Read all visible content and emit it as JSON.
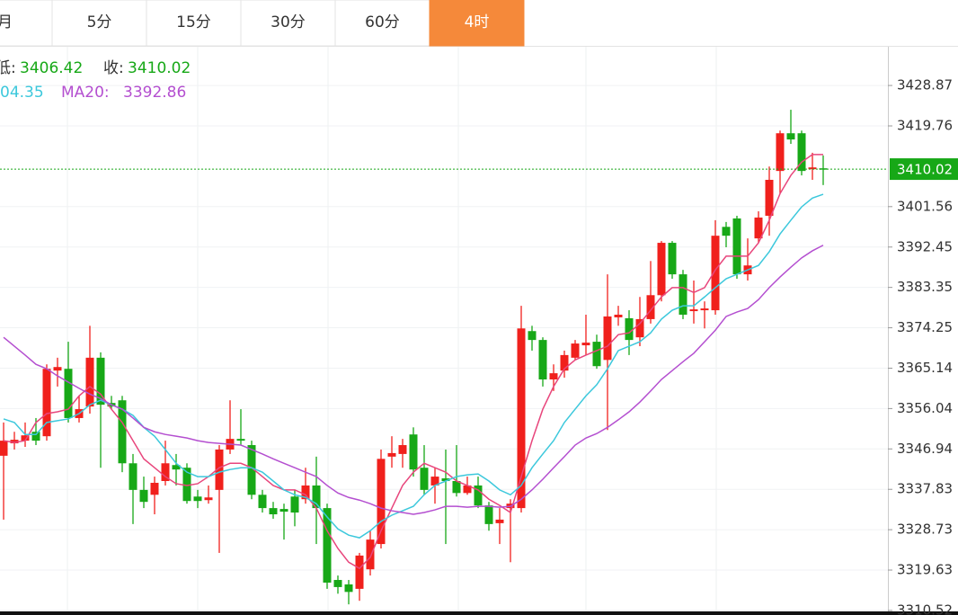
{
  "tabs": [
    "月",
    "5分",
    "15分",
    "30分",
    "60分",
    "4时"
  ],
  "active_tab": 5,
  "chart_data": {
    "type": "candlestick",
    "info": {
      "low_label": "低:",
      "close_label": "收:",
      "ma10_partial": "04.35"
    },
    "up_color": "#f0201c",
    "down_color": "#17a817",
    "open": [
      3345.4,
      3348.2,
      3348.8,
      3350.8,
      3349.8,
      3364.6,
      3365.0,
      3353.9,
      3356.5,
      3367.5,
      3357.3,
      3357.9,
      3343.7,
      3337.7,
      3336.6,
      3339.7,
      3343.3,
      3342.7,
      3336.2,
      3335.4,
      3337.7,
      3346.8,
      3349.2,
      3347.8,
      3336.6,
      3333.6,
      3333.4,
      3336.2,
      3335.6,
      3338.7,
      3333.6,
      3317.4,
      3316.4,
      3315.4,
      3319.8,
      3325.5,
      3345.2,
      3345.8,
      3350.2,
      3342.7,
      3338.7,
      3340.3,
      3339.7,
      3337.0,
      3338.7,
      3334.2,
      3330.2,
      3333.6,
      3333.6,
      3373.5,
      3371.5,
      3362.6,
      3364.6,
      3367.5,
      3370.3,
      3371.1,
      3367.0,
      3376.6,
      3376.4,
      3372.1,
      3376.2,
      3381.6,
      3393.4,
      3386.3,
      3378.0,
      3378.2,
      3378.2,
      3397.0,
      3398.9,
      3386.3,
      3394.4,
      3399.5,
      3409.6,
      3418.1,
      3418.1,
      3410.0,
      3410.2
    ],
    "high": [
      3352.9,
      3350.8,
      3352.9,
      3353.9,
      3366.0,
      3367.5,
      3371.1,
      3358.9,
      3374.7,
      3368.7,
      3358.9,
      3358.9,
      3345.8,
      3340.7,
      3340.7,
      3348.8,
      3345.8,
      3343.7,
      3337.7,
      3338.7,
      3347.8,
      3357.9,
      3355.9,
      3348.8,
      3337.7,
      3335.0,
      3334.6,
      3337.7,
      3342.7,
      3345.2,
      3334.6,
      3318.4,
      3317.4,
      3323.5,
      3328.5,
      3346.8,
      3349.8,
      3349.2,
      3351.8,
      3347.8,
      3342.7,
      3346.8,
      3347.8,
      3340.7,
      3340.7,
      3335.0,
      3333.6,
      3335.6,
      3379.2,
      3374.7,
      3372.1,
      3366.0,
      3369.1,
      3371.5,
      3377.2,
      3372.7,
      3386.3,
      3379.2,
      3378.2,
      3381.2,
      3389.3,
      3393.8,
      3393.8,
      3387.3,
      3384.9,
      3380.2,
      3398.5,
      3398.1,
      3399.5,
      3394.4,
      3400.5,
      3410.6,
      3418.7,
      3423.4,
      3418.7,
      3413.7,
      3413.1
    ],
    "low": [
      3331.0,
      3346.8,
      3347.4,
      3347.8,
      3348.8,
      3361.0,
      3352.9,
      3352.9,
      3354.9,
      3342.7,
      3355.9,
      3341.7,
      3330.0,
      3333.6,
      3332.2,
      3338.7,
      3338.7,
      3334.6,
      3333.6,
      3334.6,
      3323.5,
      3345.8,
      3347.8,
      3335.6,
      3332.6,
      3331.2,
      3326.5,
      3329.5,
      3334.6,
      3325.5,
      3315.4,
      3314.3,
      3311.9,
      3312.7,
      3318.4,
      3324.5,
      3342.7,
      3342.7,
      3340.7,
      3336.6,
      3334.6,
      3325.5,
      3336.2,
      3336.6,
      3333.6,
      3328.5,
      3325.5,
      3321.4,
      3332.6,
      3369.1,
      3361.0,
      3360.0,
      3363.0,
      3367.0,
      3368.1,
      3365.0,
      3351.2,
      3374.7,
      3368.1,
      3370.1,
      3375.2,
      3380.2,
      3385.3,
      3376.2,
      3375.2,
      3374.1,
      3377.2,
      3392.4,
      3385.3,
      3384.9,
      3393.4,
      3395.0,
      3404.5,
      3415.7,
      3408.6,
      3407.6,
      3406.42
    ],
    "close": [
      3348.8,
      3349.0,
      3350.0,
      3348.8,
      3365.0,
      3365.4,
      3353.9,
      3355.9,
      3367.5,
      3356.9,
      3356.5,
      3343.7,
      3337.7,
      3335.0,
      3339.3,
      3343.7,
      3342.3,
      3335.2,
      3335.2,
      3336.0,
      3346.8,
      3349.2,
      3348.8,
      3336.6,
      3333.6,
      3332.2,
      3332.8,
      3332.6,
      3338.7,
      3333.6,
      3316.8,
      3315.8,
      3314.7,
      3322.9,
      3326.5,
      3344.7,
      3346.0,
      3347.8,
      3342.3,
      3337.7,
      3340.7,
      3339.7,
      3337.0,
      3338.7,
      3334.2,
      3330.0,
      3331.0,
      3334.6,
      3374.1,
      3371.5,
      3362.6,
      3364.0,
      3368.1,
      3370.7,
      3370.9,
      3365.6,
      3376.8,
      3377.2,
      3371.5,
      3376.2,
      3381.6,
      3393.4,
      3386.3,
      3377.2,
      3378.4,
      3378.6,
      3395.0,
      3395.0,
      3386.3,
      3388.3,
      3399.1,
      3407.6,
      3418.1,
      3416.7,
      3409.6,
      3410.4,
      3410.02
    ],
    "ma": [
      {
        "color": "#e8467c",
        "values": [
          3348.8,
          3348.4,
          3348.8,
          3352.9,
          3354.9,
          3355.3,
          3355.9,
          3358.9,
          3361.0,
          3359.3,
          3355.9,
          3352.9,
          3348.8,
          3344.7,
          3342.7,
          3340.7,
          3339.1,
          3338.7,
          3339.1,
          3340.7,
          3342.7,
          3343.7,
          3343.7,
          3342.7,
          3340.7,
          3338.7,
          3337.7,
          3337.7,
          3336.6,
          3333.6,
          3328.5,
          3324.5,
          3321.4,
          3320.0,
          3322.5,
          3328.5,
          3333.6,
          3338.7,
          3341.7,
          3343.7,
          3342.7,
          3341.7,
          3339.7,
          3338.7,
          3337.7,
          3335.6,
          3334.2,
          3332.6,
          3340.7,
          3348.8,
          3355.9,
          3361.0,
          3365.0,
          3367.0,
          3368.1,
          3369.1,
          3370.1,
          3372.7,
          3373.1,
          3375.2,
          3378.2,
          3381.2,
          3383.3,
          3383.3,
          3382.2,
          3383.3,
          3387.3,
          3390.4,
          3390.4,
          3390.4,
          3393.4,
          3398.5,
          3404.5,
          3408.6,
          3411.6,
          3413.3,
          3413.3
        ]
      },
      {
        "color": "#3cc8dc",
        "values": [
          3353.7,
          3352.9,
          3350.2,
          3350.2,
          3352.9,
          3353.3,
          3353.7,
          3354.9,
          3356.9,
          3357.9,
          3356.9,
          3355.9,
          3354.5,
          3351.8,
          3349.8,
          3346.8,
          3343.7,
          3341.7,
          3340.7,
          3340.7,
          3341.7,
          3342.3,
          3342.7,
          3342.7,
          3341.7,
          3339.7,
          3337.7,
          3336.6,
          3336.0,
          3334.6,
          3331.6,
          3328.9,
          3327.5,
          3326.9,
          3328.5,
          3330.6,
          3332.0,
          3333.0,
          3334.0,
          3336.6,
          3338.7,
          3339.7,
          3340.7,
          3341.1,
          3341.3,
          3339.7,
          3337.7,
          3336.6,
          3338.7,
          3342.7,
          3345.8,
          3348.8,
          3352.9,
          3355.9,
          3358.9,
          3361.4,
          3365.0,
          3369.1,
          3370.1,
          3371.1,
          3373.1,
          3376.2,
          3378.2,
          3379.2,
          3379.2,
          3381.2,
          3383.3,
          3385.3,
          3386.3,
          3387.3,
          3388.3,
          3391.4,
          3395.4,
          3398.5,
          3401.5,
          3403.5,
          3404.35
        ]
      },
      {
        "name": "MA20:",
        "color": "#b44fd0",
        "values": [
          3372.1,
          3370.1,
          3368.1,
          3366.0,
          3365.0,
          3363.4,
          3362.0,
          3360.6,
          3359.3,
          3358.3,
          3356.9,
          3355.9,
          3353.9,
          3351.8,
          3350.8,
          3350.2,
          3349.8,
          3349.4,
          3348.8,
          3348.4,
          3348.2,
          3348.0,
          3347.8,
          3346.8,
          3345.8,
          3344.7,
          3343.7,
          3342.7,
          3341.7,
          3340.7,
          3338.7,
          3337.0,
          3336.0,
          3335.4,
          3334.6,
          3333.6,
          3333.0,
          3332.6,
          3332.2,
          3332.6,
          3333.2,
          3334.0,
          3334.0,
          3333.8,
          3334.0,
          3334.0,
          3333.8,
          3334.0,
          3335.6,
          3337.7,
          3340.1,
          3342.7,
          3345.2,
          3347.8,
          3349.4,
          3350.4,
          3351.8,
          3353.5,
          3355.3,
          3357.5,
          3360.0,
          3362.6,
          3364.6,
          3366.6,
          3368.5,
          3371.1,
          3373.7,
          3376.8,
          3377.8,
          3378.6,
          3380.6,
          3383.3,
          3385.7,
          3387.9,
          3390.0,
          3391.6,
          3392.86
        ]
      }
    ],
    "price_line_color": "#17a817",
    "ylim": [
      3309.5,
      3437.6
    ],
    "yticks": [
      3428.87,
      3419.76,
      3401.56,
      3392.45,
      3383.35,
      3374.25,
      3365.14,
      3356.04,
      3346.94,
      3337.83,
      3328.73,
      3319.63,
      3310.52
    ],
    "grid": true
  }
}
